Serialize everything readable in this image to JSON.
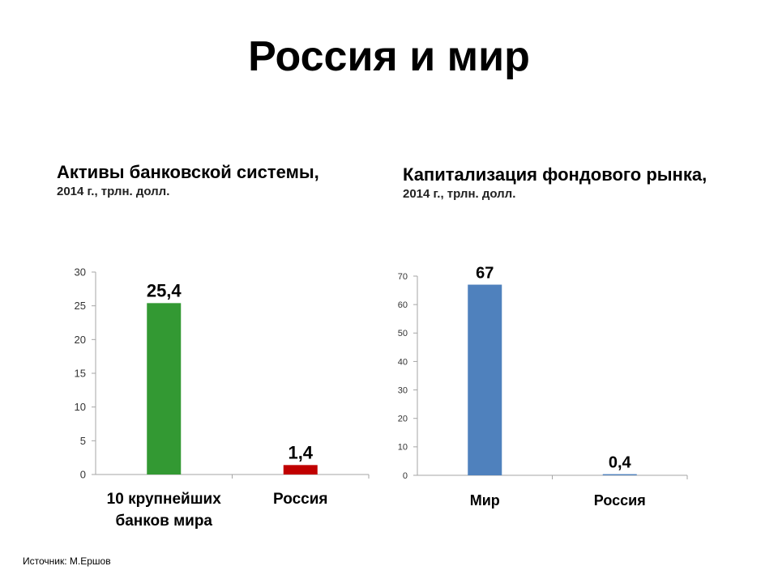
{
  "page": {
    "title": "Россия и мир"
  },
  "source": "Источник: М.Ершов",
  "colors": {
    "green": "#339933",
    "red": "#c00000",
    "blue": "#4f81bd",
    "axis": "#a6a6a6"
  },
  "chart_data": [
    {
      "type": "bar",
      "title": "Активы банковской системы,",
      "subtitle": "2014 г., трлн. долл.",
      "categories": [
        "10 крупнейших банков мира",
        "Россия"
      ],
      "values": [
        25.4,
        1.4
      ],
      "value_labels": [
        "25,4",
        "1,4"
      ],
      "bar_colors": [
        "#339933",
        "#c00000"
      ],
      "ylim": [
        0,
        30
      ],
      "yticks": [
        0,
        5,
        10,
        15,
        20,
        25,
        30
      ],
      "grid": false
    },
    {
      "type": "bar",
      "title": "Капитализация фондового рынка,",
      "subtitle": "2014 г., трлн. долл.",
      "categories": [
        "Мир",
        "Россия"
      ],
      "values": [
        67,
        0.4
      ],
      "value_labels": [
        "67",
        "0,4"
      ],
      "bar_colors": [
        "#4f81bd",
        "#4f81bd"
      ],
      "ylim": [
        0,
        70
      ],
      "yticks": [
        0,
        10,
        20,
        30,
        40,
        50,
        60,
        70
      ],
      "grid": false
    }
  ]
}
